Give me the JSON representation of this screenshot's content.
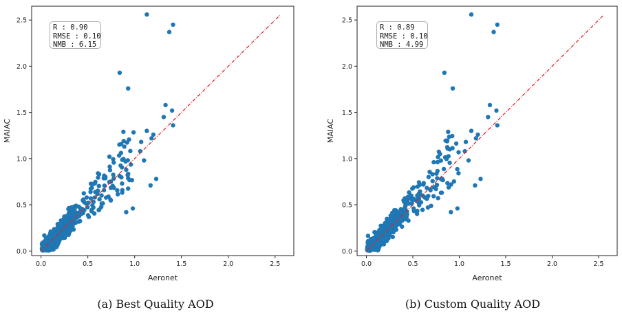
{
  "chart_data": [
    {
      "type": "scatter",
      "caption": "(a) Best Quality AOD",
      "xlabel": "Aeronet",
      "ylabel": "MAIAC",
      "xlim": [
        -0.1,
        2.7
      ],
      "ylim": [
        -0.05,
        2.65
      ],
      "xticks": [
        "0.0",
        "0.5",
        "1.0",
        "1.5",
        "2.0",
        "2.5"
      ],
      "yticks": [
        "0.0",
        "0.5",
        "1.0",
        "1.5",
        "2.0",
        "2.5"
      ],
      "stats": {
        "r": "R : 0.90",
        "rmse": "RMSE : 0.10",
        "nmb": "NMB : 6.15"
      },
      "point_color": "#1f77b4",
      "line_color": "#d62728",
      "reference_line": {
        "type": "1:1",
        "from": [
          0,
          0
        ],
        "to": [
          2.55,
          2.55
        ]
      },
      "outliers": [
        [
          1.13,
          2.56
        ],
        [
          1.41,
          2.45
        ],
        [
          1.37,
          2.37
        ],
        [
          0.84,
          1.93
        ],
        [
          0.93,
          1.76
        ],
        [
          1.33,
          1.58
        ],
        [
          1.4,
          1.52
        ],
        [
          1.31,
          1.45
        ],
        [
          1.41,
          1.36
        ],
        [
          1.13,
          1.3
        ],
        [
          0.88,
          1.29
        ],
        [
          1.18,
          1.22
        ],
        [
          1.2,
          1.26
        ],
        [
          1.07,
          1.18
        ],
        [
          1.23,
          0.78
        ],
        [
          1.17,
          0.71
        ],
        [
          0.98,
          0.46
        ],
        [
          0.91,
          0.42
        ],
        [
          1.06,
          1.08
        ],
        [
          1.1,
          0.98
        ]
      ]
    },
    {
      "type": "scatter",
      "caption": "(b) Custom Quality AOD",
      "xlabel": "Aeronet",
      "ylabel": "MAIAC",
      "xlim": [
        -0.1,
        2.7
      ],
      "ylim": [
        -0.05,
        2.65
      ],
      "xticks": [
        "0.0",
        "0.5",
        "1.0",
        "1.5",
        "2.0",
        "2.5"
      ],
      "yticks": [
        "0.0",
        "0.5",
        "1.0",
        "1.5",
        "2.0",
        "2.5"
      ],
      "stats": {
        "r": "R : 0.89",
        "rmse": "RMSE : 0.10",
        "nmb": "NMB : 4.99"
      },
      "point_color": "#1f77b4",
      "line_color": "#d62728",
      "reference_line": {
        "type": "1:1",
        "from": [
          0,
          0
        ],
        "to": [
          2.55,
          2.55
        ]
      },
      "outliers": [
        [
          1.13,
          2.56
        ],
        [
          1.41,
          2.45
        ],
        [
          1.37,
          2.37
        ],
        [
          0.84,
          1.93
        ],
        [
          0.93,
          1.76
        ],
        [
          1.33,
          1.58
        ],
        [
          1.4,
          1.52
        ],
        [
          1.31,
          1.45
        ],
        [
          1.41,
          1.36
        ],
        [
          1.13,
          1.3
        ],
        [
          0.88,
          1.29
        ],
        [
          1.18,
          1.22
        ],
        [
          1.2,
          1.26
        ],
        [
          1.07,
          1.18
        ],
        [
          1.23,
          0.78
        ],
        [
          1.17,
          0.71
        ],
        [
          0.98,
          0.46
        ],
        [
          0.91,
          0.42
        ],
        [
          1.06,
          1.08
        ],
        [
          1.1,
          0.98
        ]
      ]
    }
  ]
}
